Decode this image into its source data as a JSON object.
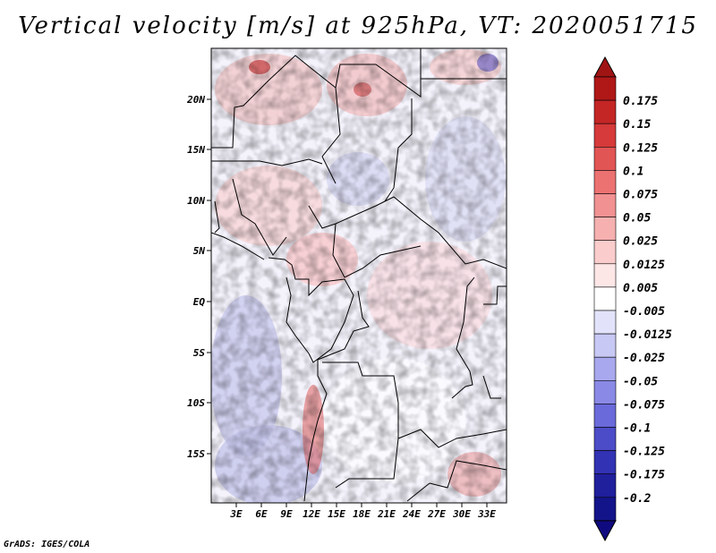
{
  "title": "Vertical velocity [m/s] at 925hPa, VT: 2020051715",
  "credit": "GrADS: IGES/COLA",
  "map": {
    "region": "Central Africa",
    "lon_range": [
      0,
      35
    ],
    "lat_range": [
      -20,
      25
    ],
    "lat_ticks": [
      "20N",
      "15N",
      "10N",
      "5N",
      "EQ",
      "5S",
      "10S",
      "15S"
    ],
    "lon_ticks": [
      "3E",
      "6E",
      "9E",
      "12E",
      "15E",
      "18E",
      "21E",
      "24E",
      "27E",
      "30E",
      "33E"
    ]
  },
  "colorbar": {
    "labels": [
      "0.175",
      "0.15",
      "0.125",
      "0.1",
      "0.075",
      "0.05",
      "0.025",
      "0.0125",
      "0.005",
      "-0.005",
      "-0.0125",
      "-0.025",
      "-0.05",
      "-0.075",
      "-0.1",
      "-0.125",
      "-0.175",
      "-0.2"
    ],
    "colors": [
      "#b01818",
      "#c42626",
      "#d63a3a",
      "#e25555",
      "#ec7272",
      "#f29191",
      "#f6b0b0",
      "#facccc",
      "#fde6e6",
      "#ffffff",
      "#e2e2fa",
      "#c8c8f4",
      "#a8a8ee",
      "#8a8ae6",
      "#6a6ada",
      "#4c4cc8",
      "#3232b4",
      "#201f9c",
      "#14148a"
    ],
    "top_color": "#a01414",
    "bottom_color": "#100a80"
  }
}
